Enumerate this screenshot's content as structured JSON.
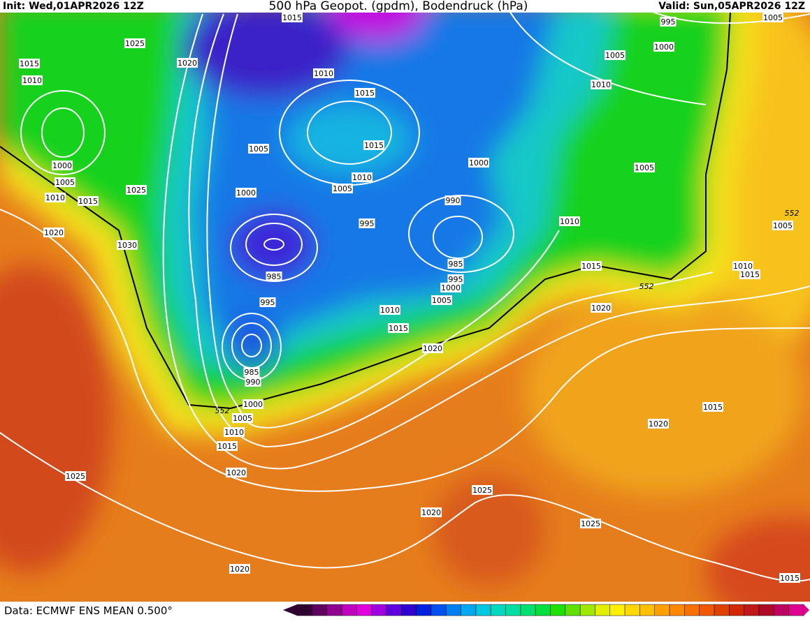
{
  "header": {
    "init": "Init: Wed,01APR2026 12Z",
    "title": "500 hPa Geopot. (gpdm), Bodendruck (hPa)",
    "valid": "Valid: Sun,05APR2026 12Z"
  },
  "map": {
    "isobar_labels": [
      1015,
      1025,
      1020,
      1015,
      1010,
      1010,
      1015,
      1015,
      1005,
      1010,
      1005,
      1000,
      1000,
      1005,
      1025,
      1010,
      1015,
      1000,
      990,
      995,
      1020,
      1030,
      1010,
      985,
      985,
      995,
      1000,
      1005,
      995,
      1010,
      1015,
      1020,
      985,
      990,
      1000,
      1005,
      1010,
      1015,
      1020,
      1025,
      1020,
      1025,
      1025,
      1020,
      1015,
      1015,
      1020,
      1020,
      1015,
      1010,
      1015,
      1005,
      1005,
      995,
      1005,
      1000,
      1005,
      1010
    ],
    "height_labels": [
      552,
      552,
      552
    ]
  },
  "footer": {
    "source": "Data: ECMWF ENS MEAN 0.500°"
  }
}
